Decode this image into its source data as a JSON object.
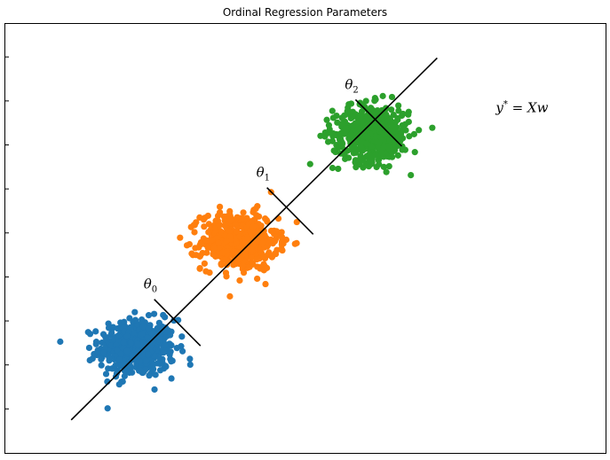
{
  "chart_data": {
    "type": "scatter",
    "title": "Ordinal Regression Parameters",
    "xlabel": "",
    "ylabel": "",
    "xlim": [
      -3.4,
      4.8
    ],
    "ylim": [
      -3.2,
      4.6
    ],
    "x_ticks_labeled": false,
    "y_ticks_labeled": false,
    "grid": false,
    "legend": "none",
    "series": [
      {
        "color": "#1f77b4",
        "cluster_center": [
          -1.6,
          -1.3
        ],
        "spread": 0.26,
        "n_points": 500
      },
      {
        "color": "#ff7f0e",
        "cluster_center": [
          -0.2,
          0.65
        ],
        "spread": 0.26,
        "n_points": 500
      },
      {
        "color": "#2ca02c",
        "cluster_center": [
          1.6,
          2.6
        ],
        "spread": 0.26,
        "n_points": 500
      }
    ],
    "regression_line": {
      "label": "y* = Xw",
      "x": [
        -2.5,
        2.5
      ],
      "y": [
        -2.6,
        3.98
      ],
      "color": "#000000"
    },
    "thresholds": [
      {
        "label": "θ",
        "subscript": "0",
        "x": -1.05,
        "y": -0.83
      },
      {
        "label": "θ",
        "subscript": "1",
        "x": 0.49,
        "y": 1.2
      },
      {
        "label": "θ",
        "subscript": "2",
        "x": 1.7,
        "y": 2.8
      }
    ],
    "y_tick_positions": [
      -2.4,
      -1.6,
      -0.8,
      0.0,
      0.8,
      1.6,
      2.4,
      3.2,
      4.0
    ],
    "annotations": [
      {
        "text": "y* = Xw",
        "x": 3.3,
        "y": 3.0
      }
    ]
  }
}
